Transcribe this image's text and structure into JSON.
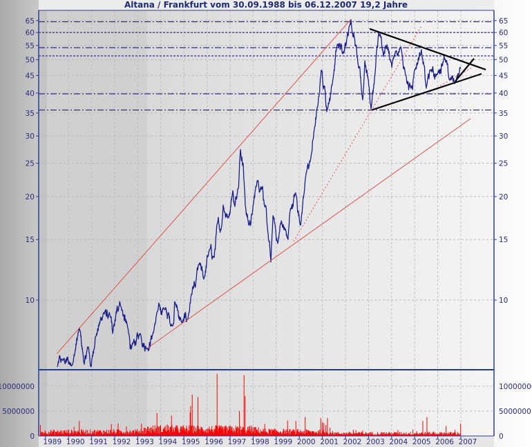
{
  "chart_data": [
    {
      "type": "line",
      "title": "Altana / Frankfurt vom 30.09.1988 bis 06.12.2007 19,2 Jahre",
      "xlabel": "",
      "ylabel": "",
      "yscale": "log",
      "ylim": [
        6.27,
        69.6
      ],
      "xlim": [
        1988.75,
        2008.25
      ],
      "grid": true,
      "y_ticks": [
        10,
        15,
        20,
        25,
        30,
        35,
        40,
        45,
        50,
        55,
        60,
        65
      ],
      "x_ticks": [
        "1989",
        "1990",
        "1991",
        "1992",
        "1993",
        "1994",
        "1995",
        "1996",
        "1997",
        "1998",
        "1999",
        "2000",
        "2001",
        "2002",
        "2003",
        "2004",
        "2005",
        "2006",
        "2007"
      ],
      "series": [
        {
          "color": "#1a1f8c",
          "points": [
            [
              1989.51,
              6.4
            ],
            [
              1989.72,
              6.7
            ],
            [
              1990.17,
              6.5
            ],
            [
              1990.47,
              8.3
            ],
            [
              1990.68,
              6.5
            ],
            [
              1990.86,
              7.3
            ],
            [
              1990.98,
              6.4
            ],
            [
              1991.16,
              7.8
            ],
            [
              1991.52,
              9.2
            ],
            [
              1991.82,
              8.9
            ],
            [
              1991.91,
              8.0
            ],
            [
              1992.22,
              9.9
            ],
            [
              1992.63,
              7.9
            ],
            [
              1992.72,
              7.2
            ],
            [
              1993.11,
              8.0
            ],
            [
              1993.41,
              7.2
            ],
            [
              1993.71,
              8.2
            ],
            [
              1993.83,
              9.2
            ],
            [
              1994.13,
              9.5
            ],
            [
              1994.51,
              8.4
            ],
            [
              1994.6,
              9.9
            ],
            [
              1994.9,
              8.6
            ],
            [
              1995.17,
              8.8
            ],
            [
              1995.32,
              10.4
            ],
            [
              1995.5,
              10.9
            ],
            [
              1995.65,
              12.7
            ],
            [
              1995.86,
              11.5
            ],
            [
              1996.1,
              14.0
            ],
            [
              1996.31,
              13.3
            ],
            [
              1996.46,
              16.8
            ],
            [
              1996.61,
              16.0
            ],
            [
              1996.7,
              18.9
            ],
            [
              1996.91,
              17.3
            ],
            [
              1997.12,
              20.8
            ],
            [
              1997.21,
              18.7
            ],
            [
              1997.3,
              20.2
            ],
            [
              1997.45,
              27.4
            ],
            [
              1997.57,
              25.0
            ],
            [
              1997.66,
              18.9
            ],
            [
              1997.81,
              16.5
            ],
            [
              1997.96,
              17.8
            ],
            [
              1998.17,
              22.2
            ],
            [
              1998.41,
              21.4
            ],
            [
              1998.5,
              18.7
            ],
            [
              1998.62,
              16.2
            ],
            [
              1998.77,
              12.9
            ],
            [
              1998.86,
              17.6
            ],
            [
              1999.07,
              14.6
            ],
            [
              1999.22,
              17.0
            ],
            [
              1999.51,
              15.0
            ],
            [
              1999.6,
              18.1
            ],
            [
              1999.84,
              20.5
            ],
            [
              2000.05,
              16.5
            ],
            [
              2000.26,
              22.5
            ],
            [
              2000.5,
              25.8
            ],
            [
              2000.65,
              31.3
            ],
            [
              2000.8,
              36.5
            ],
            [
              2000.95,
              46.6
            ],
            [
              2001.1,
              41.9
            ],
            [
              2001.19,
              35.3
            ],
            [
              2001.46,
              43.9
            ],
            [
              2001.64,
              55.3
            ],
            [
              2001.91,
              52.8
            ],
            [
              2002.09,
              59.8
            ],
            [
              2002.24,
              65.4
            ],
            [
              2002.39,
              57.9
            ],
            [
              2002.54,
              48.8
            ],
            [
              2002.75,
              38.2
            ],
            [
              2002.84,
              49.7
            ],
            [
              2002.99,
              43.9
            ],
            [
              2003.11,
              36.0
            ],
            [
              2003.29,
              46.0
            ],
            [
              2003.44,
              59.8
            ],
            [
              2003.65,
              51.1
            ],
            [
              2003.8,
              55.3
            ],
            [
              2004.01,
              47.5
            ],
            [
              2004.19,
              52.8
            ],
            [
              2004.4,
              54.5
            ],
            [
              2004.6,
              45.3
            ],
            [
              2004.84,
              41.3
            ],
            [
              2004.99,
              46.6
            ],
            [
              2005.29,
              53.5
            ],
            [
              2005.5,
              41.3
            ],
            [
              2005.68,
              46.6
            ],
            [
              2005.98,
              45.3
            ],
            [
              2006.28,
              51.1
            ],
            [
              2006.49,
              43.9
            ],
            [
              2006.79,
              43.3
            ],
            [
              2006.99,
              47.5
            ]
          ]
        }
      ],
      "level_lines": [
        {
          "value": 64.5,
          "style": "dash-dot",
          "color": "#2d2d8f"
        },
        {
          "value": 60,
          "style": "dotted",
          "color": "#2d2d8f"
        },
        {
          "value": 54.2,
          "style": "dash-dot",
          "color": "#2d2d8f"
        },
        {
          "value": 51.3,
          "style": "dotted",
          "color": "#2d2d8f"
        },
        {
          "value": 39.8,
          "style": "dash-dot",
          "color": "#2d2d8f"
        },
        {
          "value": 35.7,
          "style": "dash-dot",
          "color": "#2d2d8f"
        }
      ],
      "trend_lines": [
        {
          "from": [
            1989.49,
            6.98
          ],
          "to": [
            2002.24,
            65.6
          ],
          "color": "#e0504a",
          "style": "solid"
        },
        {
          "from": [
            1993.41,
            7.24
          ],
          "to": [
            2007.42,
            33.7
          ],
          "color": "#e0504a",
          "style": "solid"
        },
        {
          "from": [
            1999.75,
            14.8
          ],
          "to": [
            2005.29,
            62.6
          ],
          "color": "#e0504a",
          "style": "dotted"
        },
        {
          "from": [
            2006.1,
            42.0
          ],
          "to": [
            2007.5,
            47.5
          ],
          "color": "#e0504a",
          "style": "dotted"
        },
        {
          "from": [
            2003.05,
            61.5
          ],
          "to": [
            2008.08,
            46.8
          ],
          "color": "#000000",
          "style": "solid"
        },
        {
          "from": [
            2003.14,
            35.7
          ],
          "to": [
            2007.9,
            45.5
          ],
          "color": "#000000",
          "style": "solid"
        },
        {
          "from": [
            2006.76,
            43.3
          ],
          "to": [
            2007.57,
            50.4
          ],
          "color": "#000000",
          "style": "solid"
        }
      ]
    },
    {
      "type": "bar",
      "ylim": [
        0,
        13300000
      ],
      "y_ticks": [
        0,
        5000000,
        10000000
      ],
      "y_tick_labels": [
        "0",
        "5000000",
        "10000000"
      ],
      "color": "#ff0000",
      "baseline_levels": [
        [
          1988.75,
          900000
        ],
        [
          1993.0,
          1000000
        ],
        [
          1993.5,
          1600000
        ],
        [
          1997.9,
          1500000
        ],
        [
          1998.5,
          1100000
        ],
        [
          2001.2,
          900000
        ],
        [
          2001.6,
          600000
        ],
        [
          2007.0,
          600000
        ]
      ],
      "spikes": [
        [
          1990.47,
          3000000
        ],
        [
          1993.83,
          4600000
        ],
        [
          1995.3,
          6000000
        ],
        [
          1995.35,
          8300000
        ],
        [
          1995.6,
          7800000
        ],
        [
          1996.43,
          12500000
        ],
        [
          1997.4,
          5000000
        ],
        [
          1997.6,
          12200000
        ],
        [
          1997.65,
          8000000
        ],
        [
          2000.26,
          3800000
        ],
        [
          2000.92,
          3600000
        ],
        [
          2001.22,
          3600000
        ],
        [
          2005.35,
          3000000
        ],
        [
          2005.53,
          3800000
        ],
        [
          2006.37,
          2000000
        ],
        [
          2007.0,
          2500000
        ]
      ]
    }
  ]
}
